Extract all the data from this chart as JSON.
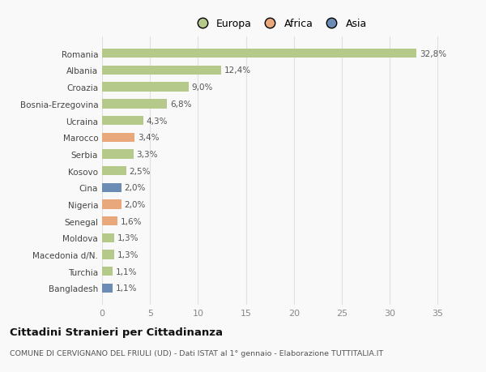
{
  "categories": [
    "Romania",
    "Albania",
    "Croazia",
    "Bosnia-Erzegovina",
    "Ucraina",
    "Marocco",
    "Serbia",
    "Kosovo",
    "Cina",
    "Nigeria",
    "Senegal",
    "Moldova",
    "Macedonia d/N.",
    "Turchia",
    "Bangladesh"
  ],
  "values": [
    32.8,
    12.4,
    9.0,
    6.8,
    4.3,
    3.4,
    3.3,
    2.5,
    2.0,
    2.0,
    1.6,
    1.3,
    1.3,
    1.1,
    1.1
  ],
  "labels": [
    "32,8%",
    "12,4%",
    "9,0%",
    "6,8%",
    "4,3%",
    "3,4%",
    "3,3%",
    "2,5%",
    "2,0%",
    "2,0%",
    "1,6%",
    "1,3%",
    "1,3%",
    "1,1%",
    "1,1%"
  ],
  "continents": [
    "Europa",
    "Europa",
    "Europa",
    "Europa",
    "Europa",
    "Africa",
    "Europa",
    "Europa",
    "Asia",
    "Africa",
    "Africa",
    "Europa",
    "Europa",
    "Europa",
    "Asia"
  ],
  "colors": {
    "Europa": "#b5c98a",
    "Africa": "#e8a87c",
    "Asia": "#6b8db5"
  },
  "legend_entries": [
    "Europa",
    "Africa",
    "Asia"
  ],
  "title": "Cittadini Stranieri per Cittadinanza",
  "subtitle": "COMUNE DI CERVIGNANO DEL FRIULI (UD) - Dati ISTAT al 1° gennaio - Elaborazione TUTTITALIA.IT",
  "xlim": [
    0,
    37
  ],
  "xticks": [
    0,
    5,
    10,
    15,
    20,
    25,
    30,
    35
  ],
  "background_color": "#f9f9f9",
  "grid_color": "#e0e0e0"
}
